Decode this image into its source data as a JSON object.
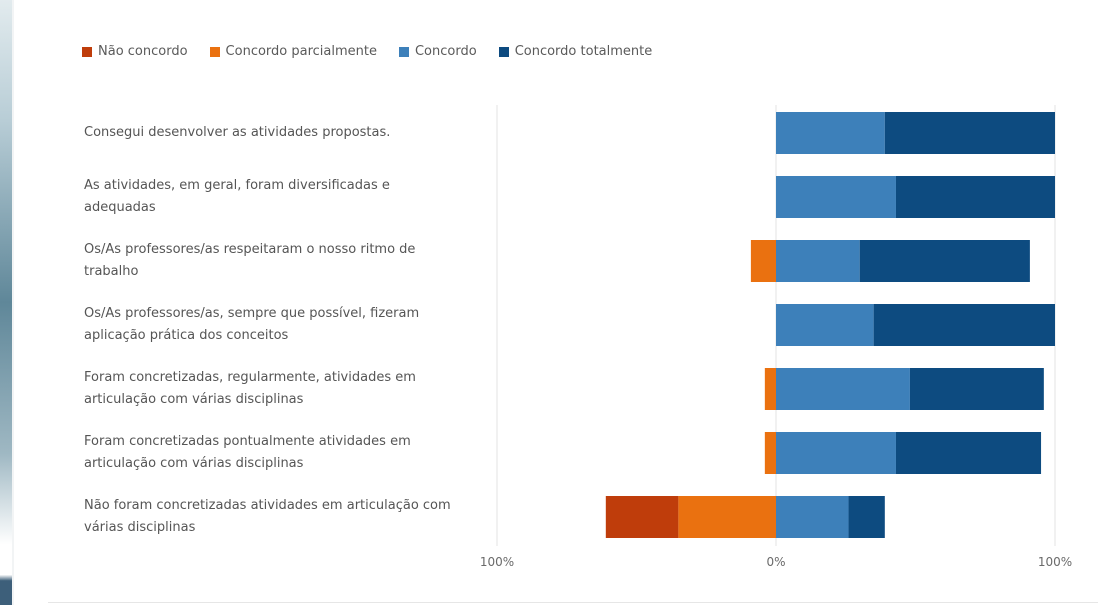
{
  "chart_data": {
    "type": "bar",
    "orientation": "horizontal-diverging-stacked",
    "categories": [
      "Consegui desenvolver as atividades propostas.",
      "As atividades, em geral, foram diversificadas e adequadas",
      "Os/As professores/as respeitaram o nosso ritmo de trabalho",
      "Os/As professores/as, sempre que possível, fizeram aplicação prática dos conceitos",
      "Foram concretizadas, regularmente, atividades em articulação com várias disciplinas",
      "Foram concretizadas pontualmente atividades em articulação com várias disciplinas",
      "Não foram concretizadas atividades em articulação com várias disciplinas"
    ],
    "series": [
      {
        "name": "Não concordo",
        "color": "#bf3d0b",
        "values": [
          0,
          0,
          0,
          0,
          0,
          0,
          26
        ]
      },
      {
        "name": "Concordo parcialmente",
        "color": "#ea7110",
        "values": [
          0,
          0,
          9,
          0,
          4,
          4,
          35
        ]
      },
      {
        "name": "Concordo",
        "color": "#3d80ba",
        "values": [
          39,
          43,
          30,
          35,
          48,
          43,
          26
        ]
      },
      {
        "name": "Concordo totalmente",
        "color": "#0d4b80",
        "values": [
          61,
          57,
          61,
          65,
          48,
          52,
          13
        ]
      }
    ],
    "negative_series": [
      "Não concordo",
      "Concordo parcialmente"
    ],
    "xlim": [
      -100,
      100
    ],
    "x_ticks": [
      {
        "value": -100,
        "label": "100%"
      },
      {
        "value": 0,
        "label": "0%"
      },
      {
        "value": 100,
        "label": "100%"
      }
    ],
    "grid": true,
    "legend_position": "top-left",
    "title": "",
    "xlabel": "",
    "ylabel": ""
  }
}
